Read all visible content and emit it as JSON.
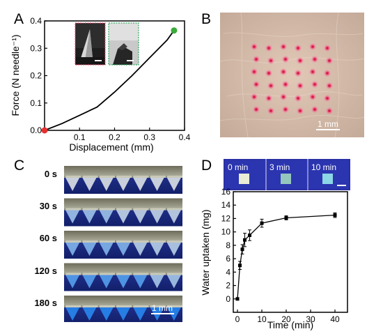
{
  "panels": {
    "a": "A",
    "b": "B",
    "c": "C",
    "d": "D"
  },
  "panel_b": {
    "scale_label": "1 mm"
  },
  "panel_c": {
    "frames": [
      {
        "label": "0 s",
        "blue_fraction": 0.0
      },
      {
        "label": "30 s",
        "blue_fraction": 0.35
      },
      {
        "label": "60 s",
        "blue_fraction": 0.5
      },
      {
        "label": "120 s",
        "blue_fraction": 0.75
      },
      {
        "label": "180 s",
        "blue_fraction": 1.0
      }
    ],
    "scale_label": "1 mm"
  },
  "panel_d": {
    "thumbnails": [
      "0 min",
      "3 min",
      "10 min"
    ]
  },
  "chart_data": [
    {
      "type": "line",
      "xlabel": "Displacement (mm)",
      "ylabel": "Force (N needle⁻¹)",
      "xlim": [
        0,
        0.4
      ],
      "ylim": [
        0,
        0.4
      ],
      "xticks": [
        "0.1",
        "0.2",
        "0.3",
        "0.4"
      ],
      "yticks": [
        "0.0",
        "0.1",
        "0.2",
        "0.3",
        "0.4"
      ],
      "x": [
        0.0,
        0.05,
        0.1,
        0.15,
        0.2,
        0.25,
        0.3,
        0.35,
        0.37
      ],
      "y": [
        0.0,
        0.025,
        0.055,
        0.085,
        0.14,
        0.2,
        0.265,
        0.33,
        0.365
      ],
      "start_point": {
        "x": 0.0,
        "y": 0.0,
        "color": "#e53030"
      },
      "end_point": {
        "x": 0.37,
        "y": 0.365,
        "color": "#3aaa3a"
      }
    },
    {
      "type": "line",
      "xlabel": "Time (min)",
      "ylabel": "Water uptaken (mg)",
      "xlim": [
        0,
        40
      ],
      "ylim": [
        -2,
        16
      ],
      "xticks": [
        "0",
        "10",
        "20",
        "30",
        "40"
      ],
      "yticks": [
        "0",
        "2",
        "4",
        "6",
        "8",
        "10",
        "12",
        "14",
        "16"
      ],
      "x": [
        0,
        1,
        2,
        3,
        5,
        10,
        20,
        40
      ],
      "y": [
        0,
        5.0,
        7.4,
        8.8,
        9.5,
        11.3,
        12.1,
        12.5
      ],
      "err": [
        0.15,
        0.6,
        0.7,
        1.0,
        0.8,
        0.6,
        0.3,
        0.35
      ]
    }
  ]
}
